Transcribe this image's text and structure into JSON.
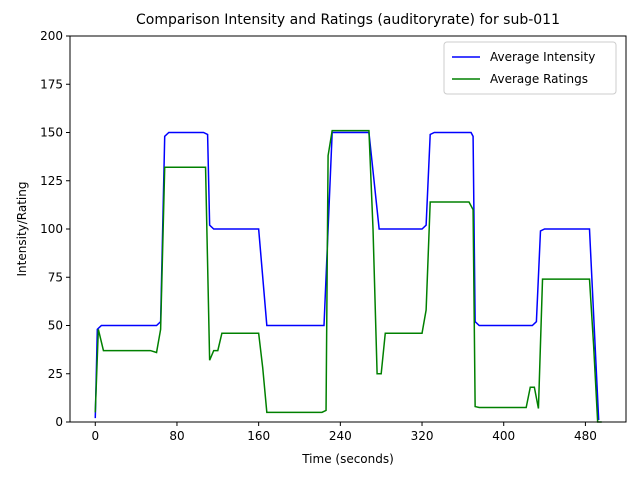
{
  "chart_data": {
    "type": "line",
    "title": "Comparison Intensity and Ratings (auditoryrate) for sub-011",
    "x_label": "Time (seconds)",
    "y_label": "Intensity/Rating",
    "xlim": [
      -24.75,
      519.75
    ],
    "ylim": [
      0,
      200
    ],
    "xticks": [
      0,
      80,
      160,
      240,
      320,
      400,
      480
    ],
    "yticks": [
      0,
      25,
      50,
      75,
      100,
      125,
      150,
      175,
      200
    ],
    "grid": false,
    "legend": "upper right",
    "series": [
      {
        "name": "Average Intensity",
        "color": "#0000ff",
        "x": [
          0,
          2,
          6,
          60,
          64,
          68,
          72,
          106,
          110,
          112,
          116,
          160,
          168,
          224,
          228,
          232,
          268,
          278,
          320,
          324,
          328,
          332,
          368,
          370,
          372,
          376,
          428,
          432,
          436,
          440,
          484,
          493
        ],
        "values": [
          2,
          48,
          50,
          50,
          52,
          148,
          150,
          150,
          149,
          102,
          100,
          100,
          50,
          50,
          100,
          150,
          150,
          100,
          100,
          102,
          149,
          150,
          150,
          148,
          52,
          50,
          50,
          52,
          99,
          100,
          100,
          1
        ]
      },
      {
        "name": "Average Ratings",
        "color": "#008000",
        "x": [
          0,
          3,
          8,
          54,
          60,
          64,
          68,
          108,
          112,
          116,
          120,
          124,
          160,
          164,
          168,
          222,
          226,
          228,
          232,
          268,
          272,
          276,
          280,
          284,
          320,
          324,
          328,
          366,
          370,
          372,
          376,
          422,
          426,
          430,
          434,
          438,
          484,
          488,
          492,
          496
        ],
        "values": [
          5,
          48,
          37,
          37,
          36,
          48,
          132,
          132,
          32,
          37,
          37,
          46,
          46,
          28,
          5,
          5,
          6,
          138,
          151,
          151,
          100,
          25,
          25,
          46,
          46,
          58,
          114,
          114,
          110,
          8,
          7.5,
          7.5,
          18,
          18,
          7,
          74,
          74,
          40,
          0,
          0
        ]
      }
    ]
  }
}
